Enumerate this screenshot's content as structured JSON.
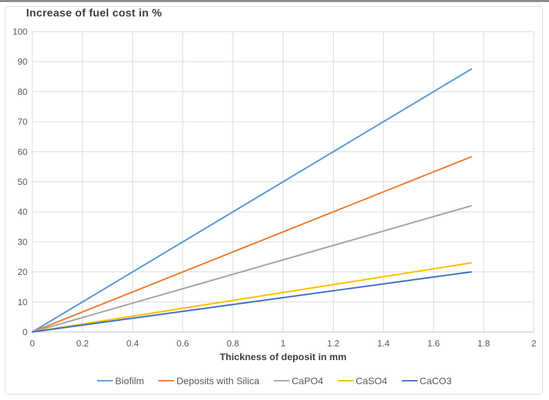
{
  "window": {
    "top_edge_color": "#8a8a8a"
  },
  "chart_data": {
    "type": "line",
    "title": "Increase of fuel cost in %",
    "xlabel": "Thickness of deposit in mm",
    "ylabel": "",
    "xlim": [
      0,
      2
    ],
    "ylim": [
      0,
      100
    ],
    "xticks": [
      0,
      0.2,
      0.4,
      0.6,
      0.8,
      1,
      1.2,
      1.4,
      1.6,
      1.8,
      2
    ],
    "xtick_labels": [
      "0",
      "0.2",
      "0.4",
      "0.6",
      "0.8",
      "1",
      "1.2",
      "1.4",
      "1.6",
      "1.8",
      "2"
    ],
    "yticks": [
      0,
      10,
      20,
      30,
      40,
      50,
      60,
      70,
      80,
      90,
      100
    ],
    "ytick_labels": [
      "0",
      "10",
      "20",
      "30",
      "40",
      "50",
      "60",
      "70",
      "80",
      "90",
      "100"
    ],
    "grid": true,
    "legend_position": "bottom-center",
    "series": [
      {
        "name": "Biofilm",
        "color": "#5B9BD5",
        "x": [
          0,
          1.75
        ],
        "y": [
          0,
          87.5
        ]
      },
      {
        "name": "Deposits with Silica",
        "color": "#ED7D31",
        "x": [
          0,
          1.75
        ],
        "y": [
          0,
          58.3
        ]
      },
      {
        "name": "CaPO4",
        "color": "#A5A5A5",
        "x": [
          0,
          1.75
        ],
        "y": [
          0,
          42
        ]
      },
      {
        "name": "CaSO4",
        "color": "#FFC000",
        "x": [
          0,
          1.75
        ],
        "y": [
          0,
          23
        ]
      },
      {
        "name": "CaCO3",
        "color": "#4472C4",
        "x": [
          0,
          1.75
        ],
        "y": [
          0,
          20
        ]
      }
    ],
    "style": {
      "gridline_color": "#D9D9D9",
      "axis_line_color": "#BFBFBF",
      "tick_text_color": "#595959",
      "title_text_color": "#404040",
      "line_width": 2.2
    }
  }
}
